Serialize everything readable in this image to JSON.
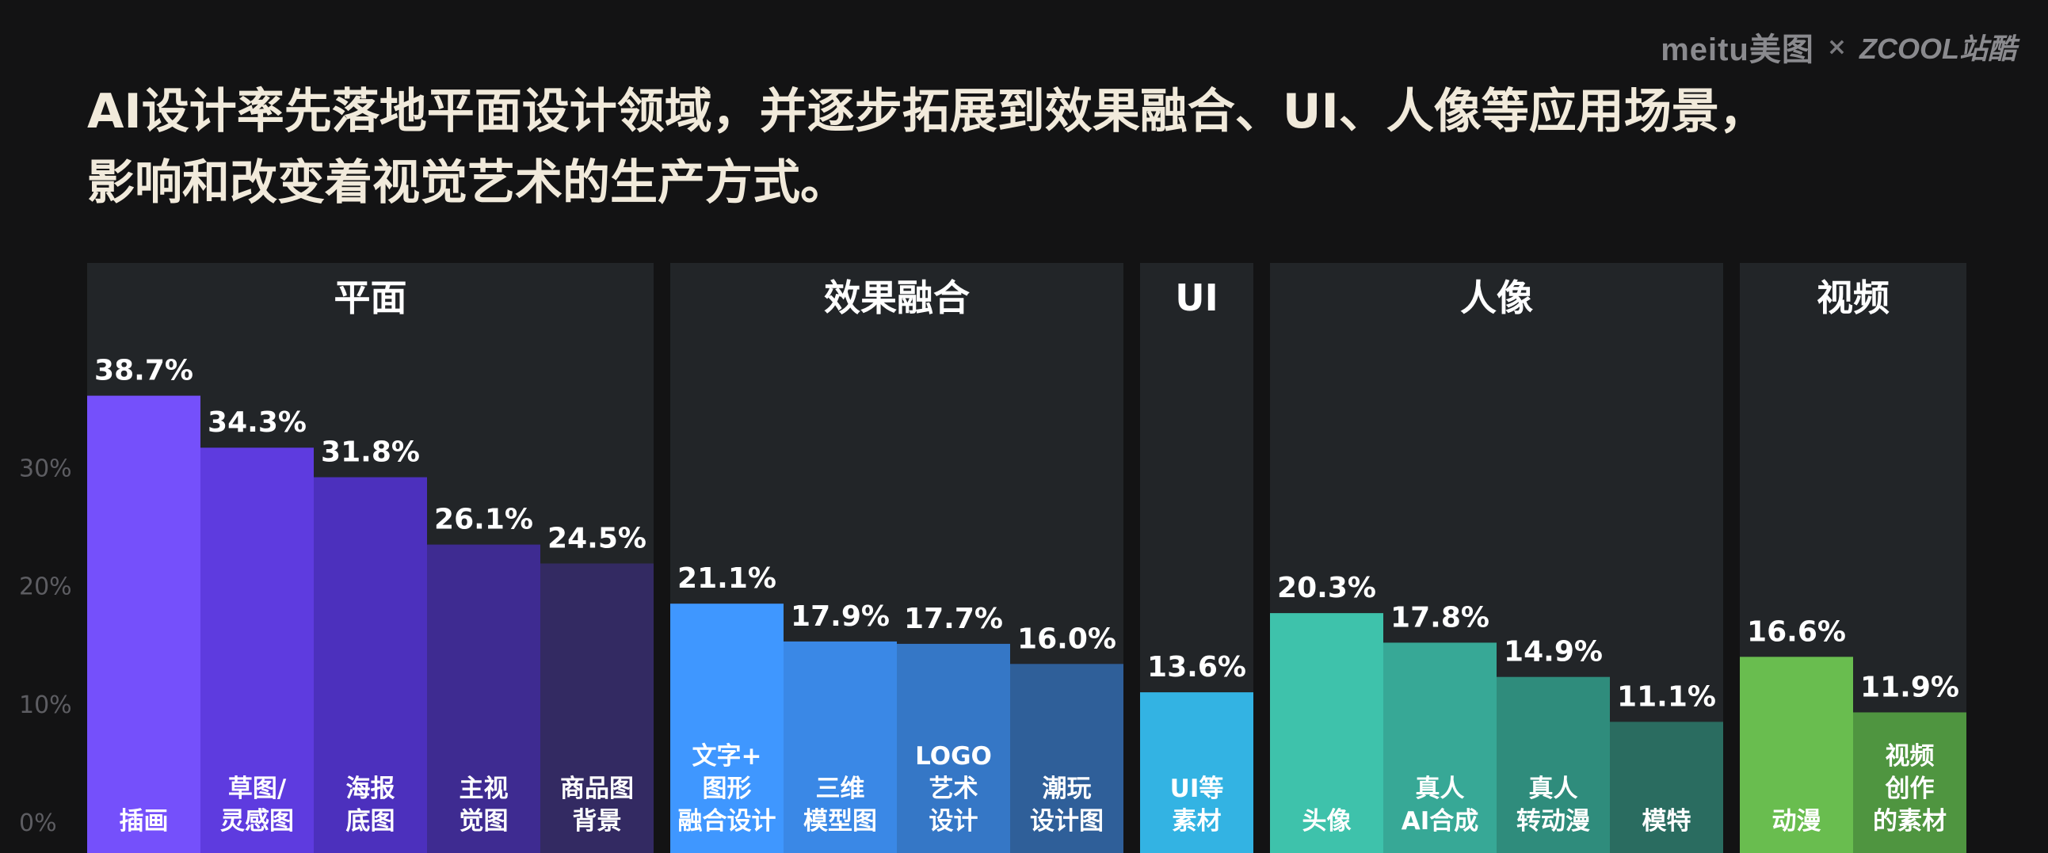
{
  "branding": {
    "meitu": "meitu美图",
    "separator": "×",
    "zcool": "ZCOOL站酷"
  },
  "title_lines": [
    "AI设计率先落地平面设计领域，并逐步拓展到效果融合、UI、人像等应用场景，",
    "影响和改变着视觉艺术的生产方式。"
  ],
  "chart_data": {
    "type": "bar",
    "y_ticks": [
      "0%",
      "10%",
      "20%",
      "30%"
    ],
    "ylim": [
      0,
      41
    ],
    "grid": false,
    "groups": [
      {
        "name": "平面",
        "bars": [
          {
            "label": [
              "插画"
            ],
            "value": 38.7,
            "display": "38.7%",
            "color": "#7550fb"
          },
          {
            "label": [
              "草图/",
              "灵感图"
            ],
            "value": 34.3,
            "display": "34.3%",
            "color": "#5e3bdf"
          },
          {
            "label": [
              "海报",
              "底图"
            ],
            "value": 31.8,
            "display": "31.8%",
            "color": "#4c30bd"
          },
          {
            "label": [
              "主视",
              "觉图"
            ],
            "value": 26.1,
            "display": "26.1%",
            "color": "#3e2b91"
          },
          {
            "label": [
              "商品图",
              "背景"
            ],
            "value": 24.5,
            "display": "24.5%",
            "color": "#332a62"
          }
        ]
      },
      {
        "name": "效果融合",
        "bars": [
          {
            "label": [
              "文字+",
              "图形",
              "融合设计"
            ],
            "value": 21.1,
            "display": "21.1%",
            "color": "#3f97ff"
          },
          {
            "label": [
              "三维",
              "模型图"
            ],
            "value": 17.9,
            "display": "17.9%",
            "color": "#3a88e6"
          },
          {
            "label": [
              "LOGO",
              "艺术",
              "设计"
            ],
            "value": 17.7,
            "display": "17.7%",
            "color": "#3577c6"
          },
          {
            "label": [
              "潮玩",
              "设计图"
            ],
            "value": 16.0,
            "display": "16.0%",
            "color": "#2f5f99"
          }
        ]
      },
      {
        "name": "UI",
        "bars": [
          {
            "label": [
              "UI等",
              "素材"
            ],
            "value": 13.6,
            "display": "13.6%",
            "color": "#33b3e3"
          }
        ]
      },
      {
        "name": "人像",
        "bars": [
          {
            "label": [
              "头像"
            ],
            "value": 20.3,
            "display": "20.3%",
            "color": "#3ec2ab"
          },
          {
            "label": [
              "真人",
              "AI合成"
            ],
            "value": 17.8,
            "display": "17.8%",
            "color": "#37a896"
          },
          {
            "label": [
              "真人",
              "转动漫"
            ],
            "value": 14.9,
            "display": "14.9%",
            "color": "#2f8c7c"
          },
          {
            "label": [
              "模特"
            ],
            "value": 11.1,
            "display": "11.1%",
            "color": "#2a6c60"
          }
        ]
      },
      {
        "name": "视频",
        "bars": [
          {
            "label": [
              "动漫"
            ],
            "value": 16.6,
            "display": "16.6%",
            "color": "#69bd4f"
          },
          {
            "label": [
              "视频",
              "创作",
              "的素材"
            ],
            "value": 11.9,
            "display": "11.9%",
            "color": "#4f9540"
          }
        ]
      }
    ]
  }
}
